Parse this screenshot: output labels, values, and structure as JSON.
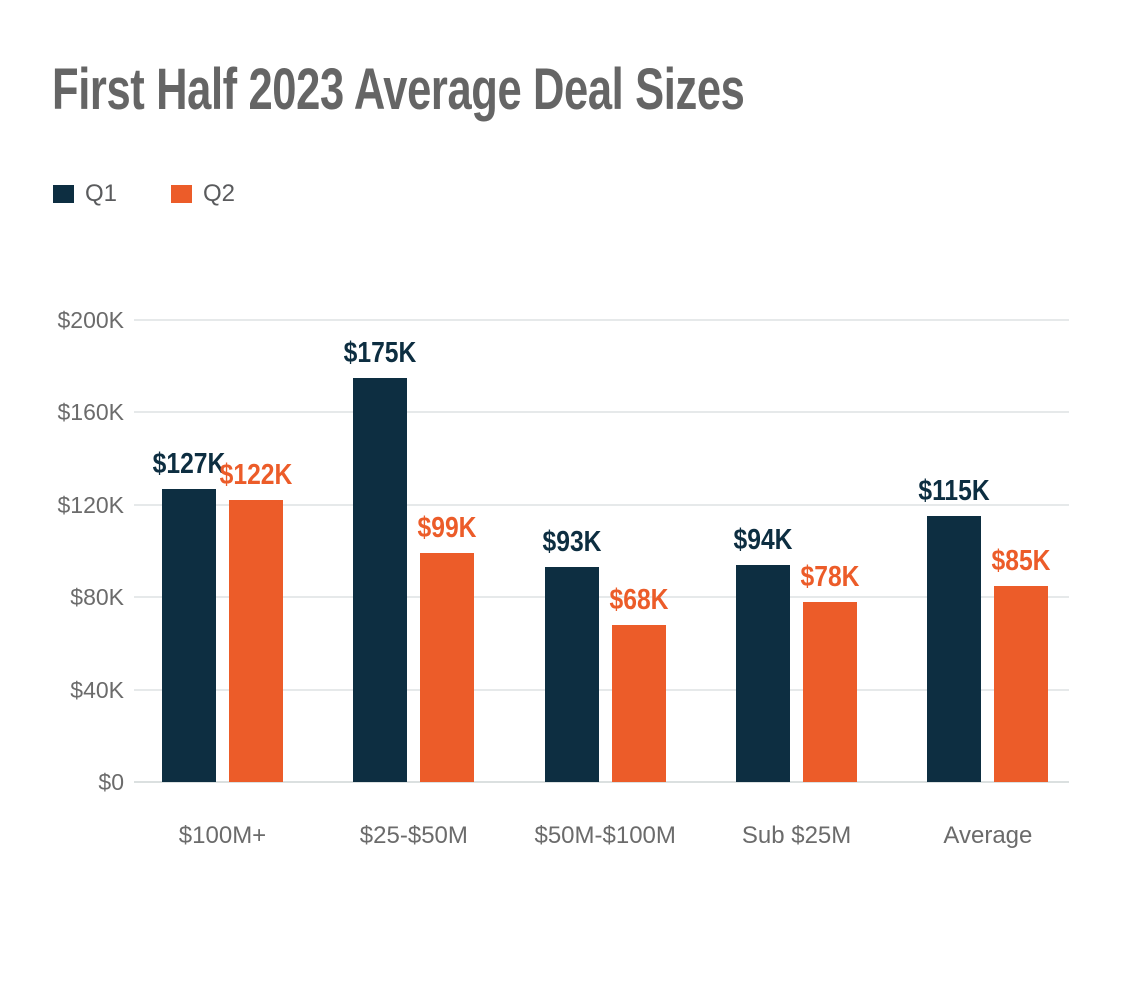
{
  "title": "First Half 2023 Average Deal Sizes",
  "legend": [
    {
      "label": "Q1",
      "color": "#0D2E41"
    },
    {
      "label": "Q2",
      "color": "#EC5C29"
    }
  ],
  "colors": {
    "q1_navy": "#0D2E41",
    "q2_orange": "#EC5C29",
    "title_gray": "#656565",
    "axis_gray": "#6b6b6b",
    "gridline": "#e6e9ea"
  },
  "chart_data": {
    "type": "bar",
    "title": "First Half 2023 Average Deal Sizes",
    "categories": [
      "$100M+",
      "$25-$50M",
      "$50M-$100M",
      "Sub $25M",
      "Average"
    ],
    "series": [
      {
        "name": "Q1",
        "color": "#0D2E41",
        "values": [
          127,
          175,
          93,
          94,
          115
        ],
        "labels": [
          "$127K",
          "$175K",
          "$93K",
          "$94K",
          "$115K"
        ]
      },
      {
        "name": "Q2",
        "color": "#EC5C29",
        "values": [
          122,
          99,
          68,
          78,
          85
        ],
        "labels": [
          "$122K",
          "$99K",
          "$68K",
          "$78K",
          "$85K"
        ]
      }
    ],
    "xlabel": "",
    "ylabel": "",
    "ylim": [
      0,
      200
    ],
    "y_ticks": [
      {
        "label": "$0",
        "value": 0
      },
      {
        "label": "$40K",
        "value": 40
      },
      {
        "label": "$80K",
        "value": 80
      },
      {
        "label": "$120K",
        "value": 120
      },
      {
        "label": "$160K",
        "value": 160
      },
      {
        "label": "$200K",
        "value": 200
      }
    ],
    "grid": true,
    "legend_position": "top-left"
  }
}
